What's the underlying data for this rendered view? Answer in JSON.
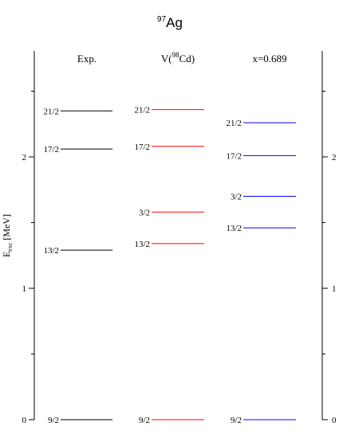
{
  "chart_data": {
    "type": "level_scheme",
    "title": {
      "mass_number": "97",
      "element": "Ag"
    },
    "ylabel": {
      "main": "E",
      "subscript": "exc",
      "unit": " [MeV]"
    },
    "ylim": [
      0,
      2.8
    ],
    "yticks": [
      0,
      1,
      2
    ],
    "columns": [
      {
        "heading": {
          "pre": "Exp.",
          "sup": "",
          "post": ""
        },
        "color": "#000000",
        "levels": [
          {
            "label": "9/2",
            "energy": 0.0
          },
          {
            "label": "13/2",
            "energy": 1.29
          },
          {
            "label": "17/2",
            "energy": 2.06
          },
          {
            "label": "21/2",
            "energy": 2.35
          }
        ]
      },
      {
        "heading": {
          "pre": "V(",
          "sup": "98",
          "post": "Cd)"
        },
        "color": "#ff0000",
        "levels": [
          {
            "label": "9/2",
            "energy": 0.0
          },
          {
            "label": "13/2",
            "energy": 1.34
          },
          {
            "label": "3/2",
            "energy": 1.58
          },
          {
            "label": "17/2",
            "energy": 2.08
          },
          {
            "label": "21/2",
            "energy": 2.36
          }
        ]
      },
      {
        "heading": {
          "pre": "x=0.689",
          "sup": "",
          "post": ""
        },
        "color": "#0000ff",
        "levels": [
          {
            "label": "9/2",
            "energy": 0.0
          },
          {
            "label": "13/2",
            "energy": 1.46
          },
          {
            "label": "3/2",
            "energy": 1.7
          },
          {
            "label": "17/2",
            "energy": 2.01
          },
          {
            "label": "21/2",
            "energy": 2.26
          }
        ]
      }
    ]
  }
}
